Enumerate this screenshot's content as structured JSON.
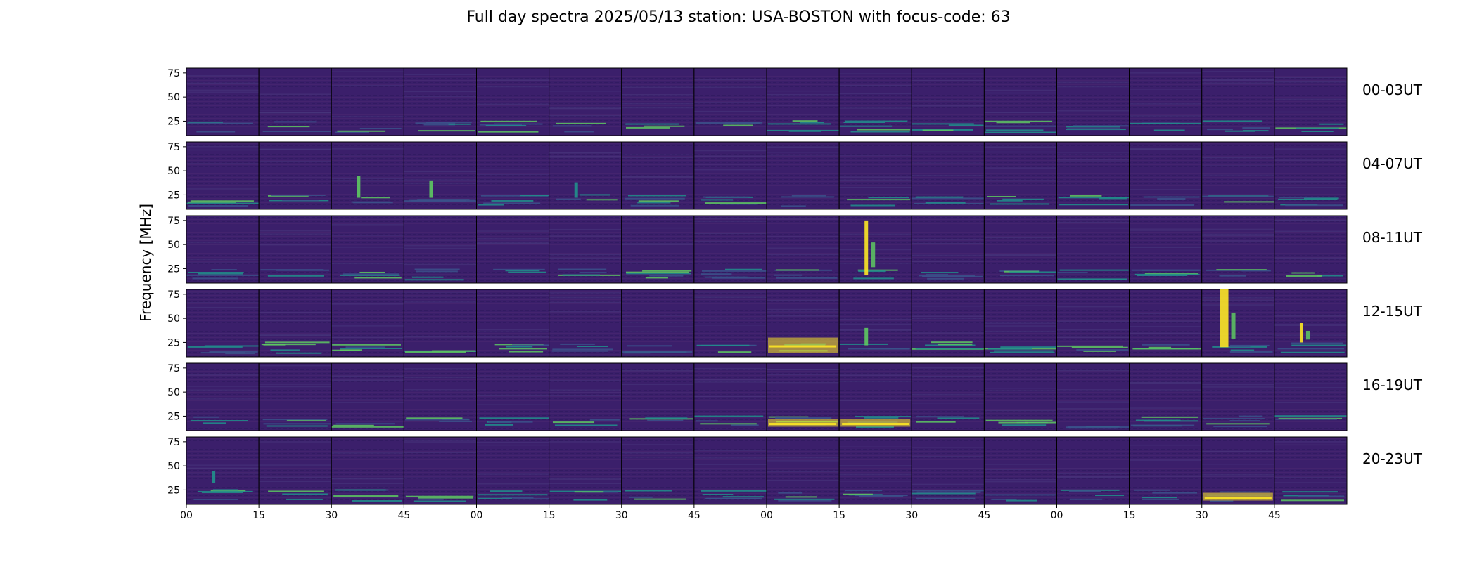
{
  "figure": {
    "title": "Full day spectra 2025/05/13 station: USA-BOSTON with focus-code: 63"
  },
  "chart_data": {
    "type": "heatmap",
    "title": "Full day spectra 2025/05/13 station: USA-BOSTON with focus-code: 63",
    "ylabel": "Frequency [MHz]",
    "xlabel": "",
    "colormap": "viridis",
    "ylim": [
      10,
      80
    ],
    "y_ticks": [
      25,
      50,
      75
    ],
    "x_ticks": [
      "00",
      "15",
      "30",
      "45",
      "00",
      "15",
      "30",
      "45",
      "00",
      "15",
      "30",
      "45",
      "00",
      "15",
      "30",
      "45"
    ],
    "panels_per_row": 16,
    "panel_minutes": 15,
    "rows": [
      {
        "label": "00-03UT",
        "features": []
      },
      {
        "label": "04-07UT",
        "features": [
          {
            "panel": 2,
            "type": "burst",
            "freq": [
              22,
              45
            ],
            "strength": 0.8
          },
          {
            "panel": 3,
            "type": "burst",
            "freq": [
              22,
              40
            ],
            "strength": 0.7
          },
          {
            "panel": 5,
            "type": "burst",
            "freq": [
              22,
              38
            ],
            "strength": 0.6
          }
        ]
      },
      {
        "label": "08-11UT",
        "features": [
          {
            "panel": 9,
            "type": "burst",
            "freq": [
              18,
              75
            ],
            "strength": 0.9
          }
        ]
      },
      {
        "label": "12-15UT",
        "features": [
          {
            "panel": 8,
            "type": "band",
            "freq": [
              14,
              30
            ],
            "strength": 0.9
          },
          {
            "panel": 9,
            "type": "burst",
            "freq": [
              22,
              40
            ],
            "strength": 0.8
          },
          {
            "panel": 14,
            "type": "burst",
            "freq": [
              20,
              80
            ],
            "strength": 1.0
          },
          {
            "panel": 15,
            "type": "burst",
            "freq": [
              25,
              45
            ],
            "strength": 0.9
          }
        ]
      },
      {
        "label": "16-19UT",
        "features": [
          {
            "panel": 8,
            "type": "band",
            "freq": [
              14,
              22
            ],
            "strength": 1.0
          },
          {
            "panel": 9,
            "type": "band",
            "freq": [
              14,
              22
            ],
            "strength": 0.9
          }
        ]
      },
      {
        "label": "20-23UT",
        "features": [
          {
            "panel": 0,
            "type": "burst",
            "freq": [
              32,
              45
            ],
            "strength": 0.6
          },
          {
            "panel": 14,
            "type": "band",
            "freq": [
              14,
              22
            ],
            "strength": 0.9
          }
        ]
      }
    ],
    "grid": false,
    "legend": "none"
  }
}
